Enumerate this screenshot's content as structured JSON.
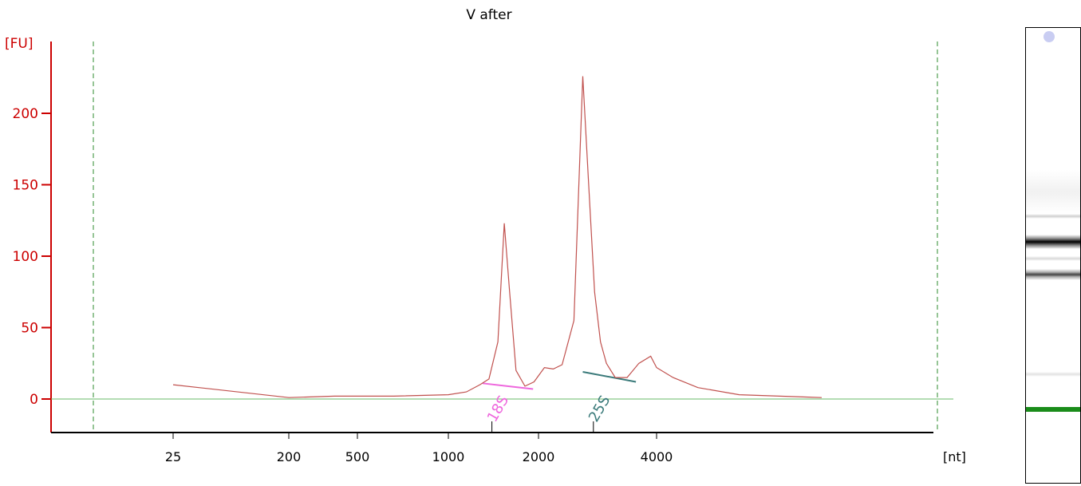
{
  "chart_data": {
    "type": "line",
    "title": "V after",
    "ylabel": "[FU]",
    "xlabel": "[nt]",
    "ylim": [
      -23,
      250
    ],
    "y_ticks": [
      0,
      50,
      100,
      150,
      200
    ],
    "y_tick_labels": [
      "0",
      "50",
      "100",
      "150",
      "200"
    ],
    "x_ticks": [
      "25",
      "200",
      "500",
      "1000",
      "2000",
      "4000"
    ],
    "x_scale": "marker-based (non-linear)",
    "grid": false,
    "legend": "none",
    "markers": [
      {
        "label": "18S",
        "color": "#ee66dd",
        "start_nt": 1380,
        "end_nt": 1940,
        "start_fu": 11,
        "end_fu": 7
      },
      {
        "label": "25S",
        "color": "#3a7a7a",
        "start_nt": 2750,
        "end_nt": 3650,
        "start_fu": 19,
        "end_fu": 12
      }
    ],
    "series": [
      {
        "color": "#c0504d",
        "x": [
          25,
          200,
          400,
          700,
          1000,
          1200,
          1350,
          1450,
          1550,
          1620,
          1680,
          1750,
          1850,
          1950,
          2100,
          2250,
          2400,
          2600,
          2750,
          2850,
          2950,
          3050,
          3150,
          3300,
          3500,
          3700,
          3900,
          4000,
          4200,
          4500,
          5000,
          6000
        ],
        "y": [
          10,
          1,
          2,
          2,
          3,
          5,
          10,
          14,
          40,
          123,
          75,
          20,
          9,
          12,
          22,
          21,
          24,
          55,
          226,
          150,
          75,
          40,
          25,
          15,
          15,
          25,
          30,
          22,
          15,
          8,
          3,
          1
        ]
      }
    ]
  },
  "colors": {
    "axis": "#cc0000",
    "baseline": "#6ab86a",
    "boundary": "#2e8b2e",
    "trace": "#c0504d",
    "gel_marker": "#1a8c1a"
  }
}
